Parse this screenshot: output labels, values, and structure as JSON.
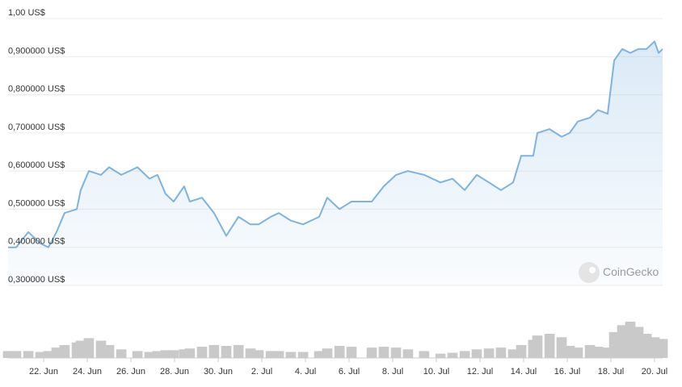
{
  "chart_data": {
    "type": "line",
    "watermark": "CoinGecko",
    "x": [
      -1.63,
      -1.26,
      -0.7,
      -0.15,
      0.22,
      0.59,
      0.96,
      1.52,
      1.7,
      2.07,
      2.63,
      3.0,
      3.56,
      4.3,
      4.85,
      5.22,
      5.59,
      5.96,
      6.44,
      6.7,
      7.26,
      7.81,
      8.37,
      8.93,
      9.48,
      9.85,
      10.41,
      10.78,
      11.33,
      11.89,
      12.63,
      13.0,
      13.56,
      14.11,
      15.04,
      15.59,
      16.15,
      16.7,
      17.44,
      18.19,
      18.74,
      19.3,
      19.85,
      20.41,
      20.96,
      21.52,
      21.89,
      22.44,
      22.63,
      23.19,
      23.74,
      24.11,
      24.48,
      25.04,
      25.41,
      25.85,
      26.15,
      26.52,
      26.89,
      27.26,
      27.63,
      28.0,
      28.19,
      28.37
    ],
    "series": [
      {
        "color": "#7db3e0",
        "values": [
          0.4,
          0.4,
          0.44,
          0.41,
          0.4,
          0.44,
          0.49,
          0.5,
          0.55,
          0.6,
          0.59,
          0.61,
          0.59,
          0.61,
          0.58,
          0.59,
          0.54,
          0.52,
          0.56,
          0.52,
          0.53,
          0.49,
          0.43,
          0.48,
          0.46,
          0.46,
          0.48,
          0.49,
          0.47,
          0.46,
          0.48,
          0.53,
          0.5,
          0.52,
          0.52,
          0.56,
          0.59,
          0.6,
          0.59,
          0.57,
          0.58,
          0.55,
          0.59,
          0.57,
          0.55,
          0.57,
          0.64,
          0.64,
          0.7,
          0.71,
          0.69,
          0.7,
          0.73,
          0.74,
          0.76,
          0.75,
          0.89,
          0.92,
          0.91,
          0.92,
          0.92,
          0.94,
          0.91,
          0.92
        ]
      }
    ],
    "volume": {
      "color": "#c9c9c9",
      "values": [
        8,
        8,
        8,
        7,
        8,
        12,
        15,
        18,
        20,
        23,
        20,
        15,
        10,
        8,
        7,
        8,
        9,
        9,
        10,
        11,
        13,
        15,
        14,
        15,
        11,
        9,
        8,
        8,
        7,
        7,
        8,
        11,
        14,
        13,
        12,
        13,
        12,
        10,
        8,
        5,
        6,
        8,
        10,
        11,
        12,
        10,
        15,
        21,
        26,
        28,
        24,
        14,
        12,
        15,
        13,
        12,
        30,
        38,
        42,
        36,
        28,
        24,
        22,
        22
      ]
    },
    "xlim": [
      -1.63,
      28.37
    ],
    "xticks": [
      {
        "value": 0,
        "label": "22. Jun"
      },
      {
        "value": 2,
        "label": "24. Jun"
      },
      {
        "value": 4,
        "label": "26. Jun"
      },
      {
        "value": 6,
        "label": "28. Jun"
      },
      {
        "value": 8,
        "label": "30. Jun"
      },
      {
        "value": 10,
        "label": "2. Jul"
      },
      {
        "value": 12,
        "label": "4. Jul"
      },
      {
        "value": 14,
        "label": "6. Jul"
      },
      {
        "value": 16,
        "label": "8. Jul"
      },
      {
        "value": 18,
        "label": "10. Jul"
      },
      {
        "value": 20,
        "label": "12. Jul"
      },
      {
        "value": 22,
        "label": "14. Jul"
      },
      {
        "value": 24,
        "label": "16. Jul"
      },
      {
        "value": 26,
        "label": "18. Jul"
      },
      {
        "value": 28,
        "label": "20. Jul"
      }
    ],
    "ylim": [
      0.3,
      1.0
    ],
    "yticks": [
      {
        "value": 1.0,
        "label": "1,00 US$"
      },
      {
        "value": 0.9,
        "label": "0,900000 US$"
      },
      {
        "value": 0.8,
        "label": "0,800000 US$"
      },
      {
        "value": 0.7,
        "label": "0,700000 US$"
      },
      {
        "value": 0.6,
        "label": "0,600000 US$"
      },
      {
        "value": 0.5,
        "label": "0,500000 US$"
      },
      {
        "value": 0.4,
        "label": "0,400000 US$"
      },
      {
        "value": 0.3,
        "label": "0,300000 US$"
      }
    ],
    "grid": true
  }
}
